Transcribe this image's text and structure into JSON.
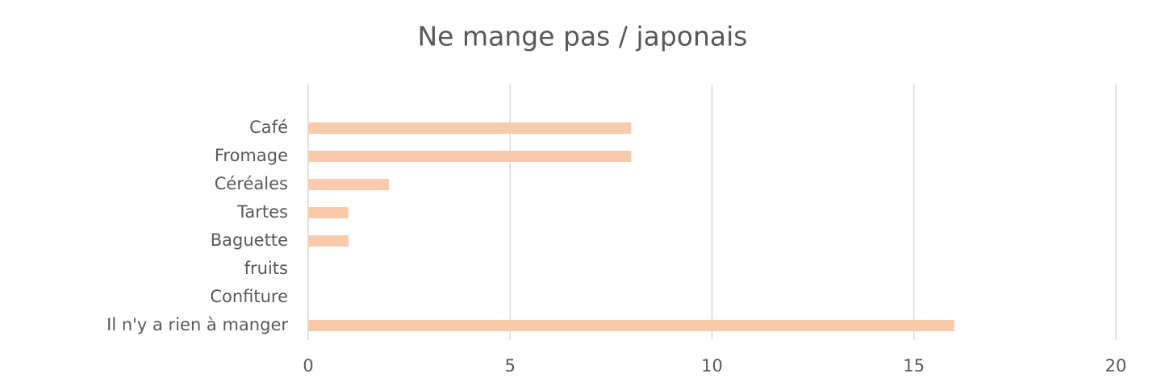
{
  "chart_data": {
    "type": "bar",
    "orientation": "horizontal",
    "title": "Ne mange pas / japonais",
    "categories": [
      "Café",
      "Fromage",
      "Céréales",
      "Tartes",
      "Baguette",
      "fruits",
      "Confiture",
      "Il n'y a rien à manger"
    ],
    "values": [
      8,
      8,
      2,
      1,
      1,
      0,
      0,
      16
    ],
    "color": "#f8cbad",
    "xlim": [
      0,
      20
    ],
    "xticks": [
      0,
      5,
      10,
      15,
      20
    ],
    "grid": true
  }
}
